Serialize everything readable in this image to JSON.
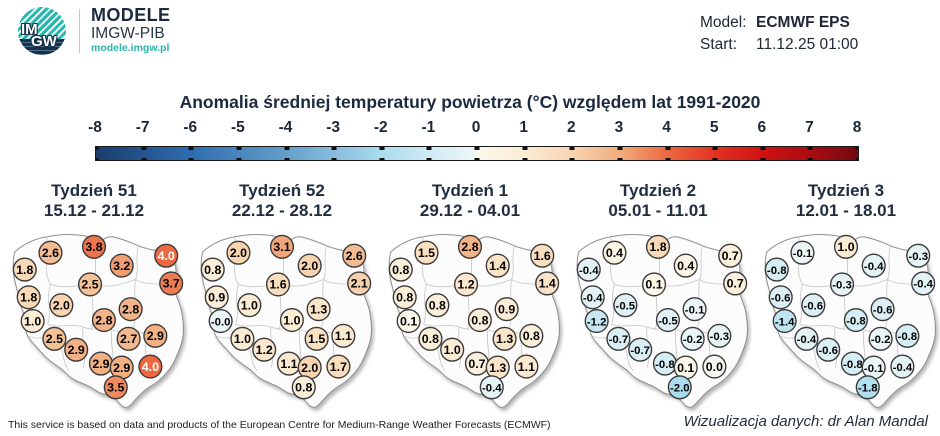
{
  "header": {
    "logo": {
      "im": "IM",
      "gw": "GW",
      "line1": "MODELE",
      "line2": "IMGW-PIB",
      "url": "modele.imgw.pl"
    },
    "model_label": "Model:",
    "model_value": "ECMWF EPS",
    "start_label": "Start:",
    "start_value": "11.12.25 01:00"
  },
  "title": "Anomalia średniej temperatury powietrza (°C) względem lat 1991-2020",
  "footer": {
    "left": "This service is based on data and products of the European Centre for Medium-Range Weather Forecasts (ECMWF)",
    "right": "Wizualizacja danych: dr Alan Mandal"
  },
  "chart_data": {
    "type": "heatmap",
    "subtype": "map-grid-point-values",
    "region": "Poland",
    "title": "Anomalia średniej temperatury powietrza (°C) względem lat 1991-2020",
    "value_unit": "°C",
    "colorbar": {
      "min": -8,
      "max": 8,
      "ticks": [
        -8,
        -7,
        -6,
        -5,
        -4,
        -3,
        -2,
        -1,
        0,
        1,
        2,
        3,
        4,
        5,
        6,
        7,
        8
      ],
      "orientation": "horizontal"
    },
    "value_color_stops": [
      [
        -8,
        "#1b3d6d"
      ],
      [
        -6,
        "#2f6cb0"
      ],
      [
        -4,
        "#649fcb"
      ],
      [
        -2,
        "#aadcee"
      ],
      [
        -1,
        "#cfeaf4"
      ],
      [
        -0.04,
        "#eef7f6"
      ],
      [
        0.04,
        "#fcf8ea"
      ],
      [
        1,
        "#fbecd4"
      ],
      [
        2,
        "#f8d5b0"
      ],
      [
        3,
        "#f1ac7e"
      ],
      [
        4,
        "#ec6840"
      ],
      [
        5,
        "#e23222"
      ],
      [
        6,
        "#d01111"
      ],
      [
        7,
        "#a90d12"
      ],
      [
        8,
        "#720a10"
      ]
    ],
    "point_positions": [
      [
        51,
        30
      ],
      [
        95,
        24
      ],
      [
        25,
        47
      ],
      [
        123,
        43
      ],
      [
        168,
        33
      ],
      [
        91,
        62
      ],
      [
        173,
        61
      ],
      [
        29,
        75
      ],
      [
        62,
        83
      ],
      [
        105,
        98
      ],
      [
        132,
        87
      ],
      [
        33,
        99
      ],
      [
        55,
        117
      ],
      [
        77,
        128
      ],
      [
        130,
        117
      ],
      [
        157,
        114
      ],
      [
        102,
        142
      ],
      [
        123,
        146
      ],
      [
        152,
        145
      ],
      [
        117,
        166
      ]
    ],
    "panels": [
      {
        "title": "Tydzień 51",
        "dates": "15.12 - 21.12",
        "values": [
          "2.6",
          "3.8",
          "1.8",
          "3.2",
          "4.0",
          "2.5",
          "3.7",
          "1.8",
          "2.0",
          "2.8",
          "2.8",
          "1.0",
          "2.5",
          "2.9",
          "2.7",
          "2.9",
          "2.9",
          "2.9",
          "4.0",
          "3.5"
        ]
      },
      {
        "title": "Tydzień 52",
        "dates": "22.12 - 28.12",
        "values": [
          "2.0",
          "3.1",
          "0.8",
          "2.0",
          "2.6",
          "1.6",
          "2.1",
          "0.9",
          "1.0",
          "1.0",
          "1.3",
          "-0.0",
          "1.0",
          "1.2",
          "1.5",
          "1.1",
          "1.1",
          "2.0",
          "1.7",
          "0.8"
        ]
      },
      {
        "title": "Tydzień 1",
        "dates": "29.12 - 04.01",
        "values": [
          "1.5",
          "2.8",
          "0.8",
          "1.4",
          "1.6",
          "1.2",
          "1.4",
          "0.8",
          "0.8",
          "0.8",
          "0.9",
          "0.1",
          "0.8",
          "1.0",
          "1.3",
          "0.8",
          "0.7",
          "1.3",
          "1.1",
          "-0.4"
        ]
      },
      {
        "title": "Tydzień 2",
        "dates": "05.01 - 11.01",
        "values": [
          "0.4",
          "1.8",
          "-0.4",
          "0.4",
          "0.7",
          "0.1",
          "0.7",
          "-0.4",
          "-0.5",
          "-0.5",
          "-0.1",
          "-1.2",
          "-0.7",
          "-0.7",
          "-0.2",
          "-0.3",
          "-0.8",
          "0.1",
          "0.0",
          "-2.0"
        ]
      },
      {
        "title": "Tydzień 3",
        "dates": "12.01 - 18.01",
        "values": [
          "-0.1",
          "1.0",
          "-0.8",
          "-0.4",
          "-0.3",
          "-0.3",
          "-0.4",
          "-0.6",
          "-0.6",
          "-0.8",
          "-0.6",
          "-1.4",
          "-0.4",
          "-0.6",
          "-0.2",
          "-0.8",
          "-0.8",
          "-0.1",
          "-0.4",
          "-1.8"
        ]
      }
    ]
  }
}
